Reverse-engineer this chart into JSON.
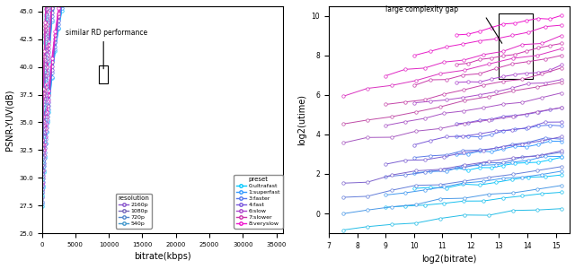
{
  "resolutions": [
    "2160p",
    "1080p",
    "720p",
    "540p"
  ],
  "presets": [
    "0:ultrafast",
    "1:superfast",
    "3:faster",
    "4:fast",
    "6:slow",
    "7:slower",
    "8:veryslow"
  ],
  "preset_colors": [
    "#00c8ff",
    "#3399ff",
    "#5577ee",
    "#7755dd",
    "#aa44cc",
    "#cc33aa",
    "#ee11cc"
  ],
  "background": "#ffffff",
  "fig_width": 6.4,
  "fig_height": 3.0,
  "left_xlim": [
    0,
    36000
  ],
  "left_ylim": [
    25.0,
    45.5
  ],
  "right_xlim": [
    7,
    15.5
  ],
  "right_ylim": [
    -1,
    10.5
  ],
  "annotation_left_text": "similar RD performance",
  "annotation_right_text": "large complexity gap",
  "res_legend_colors": [
    "#8855cc",
    "#7766bb",
    "#5588cc",
    "#4499cc"
  ]
}
